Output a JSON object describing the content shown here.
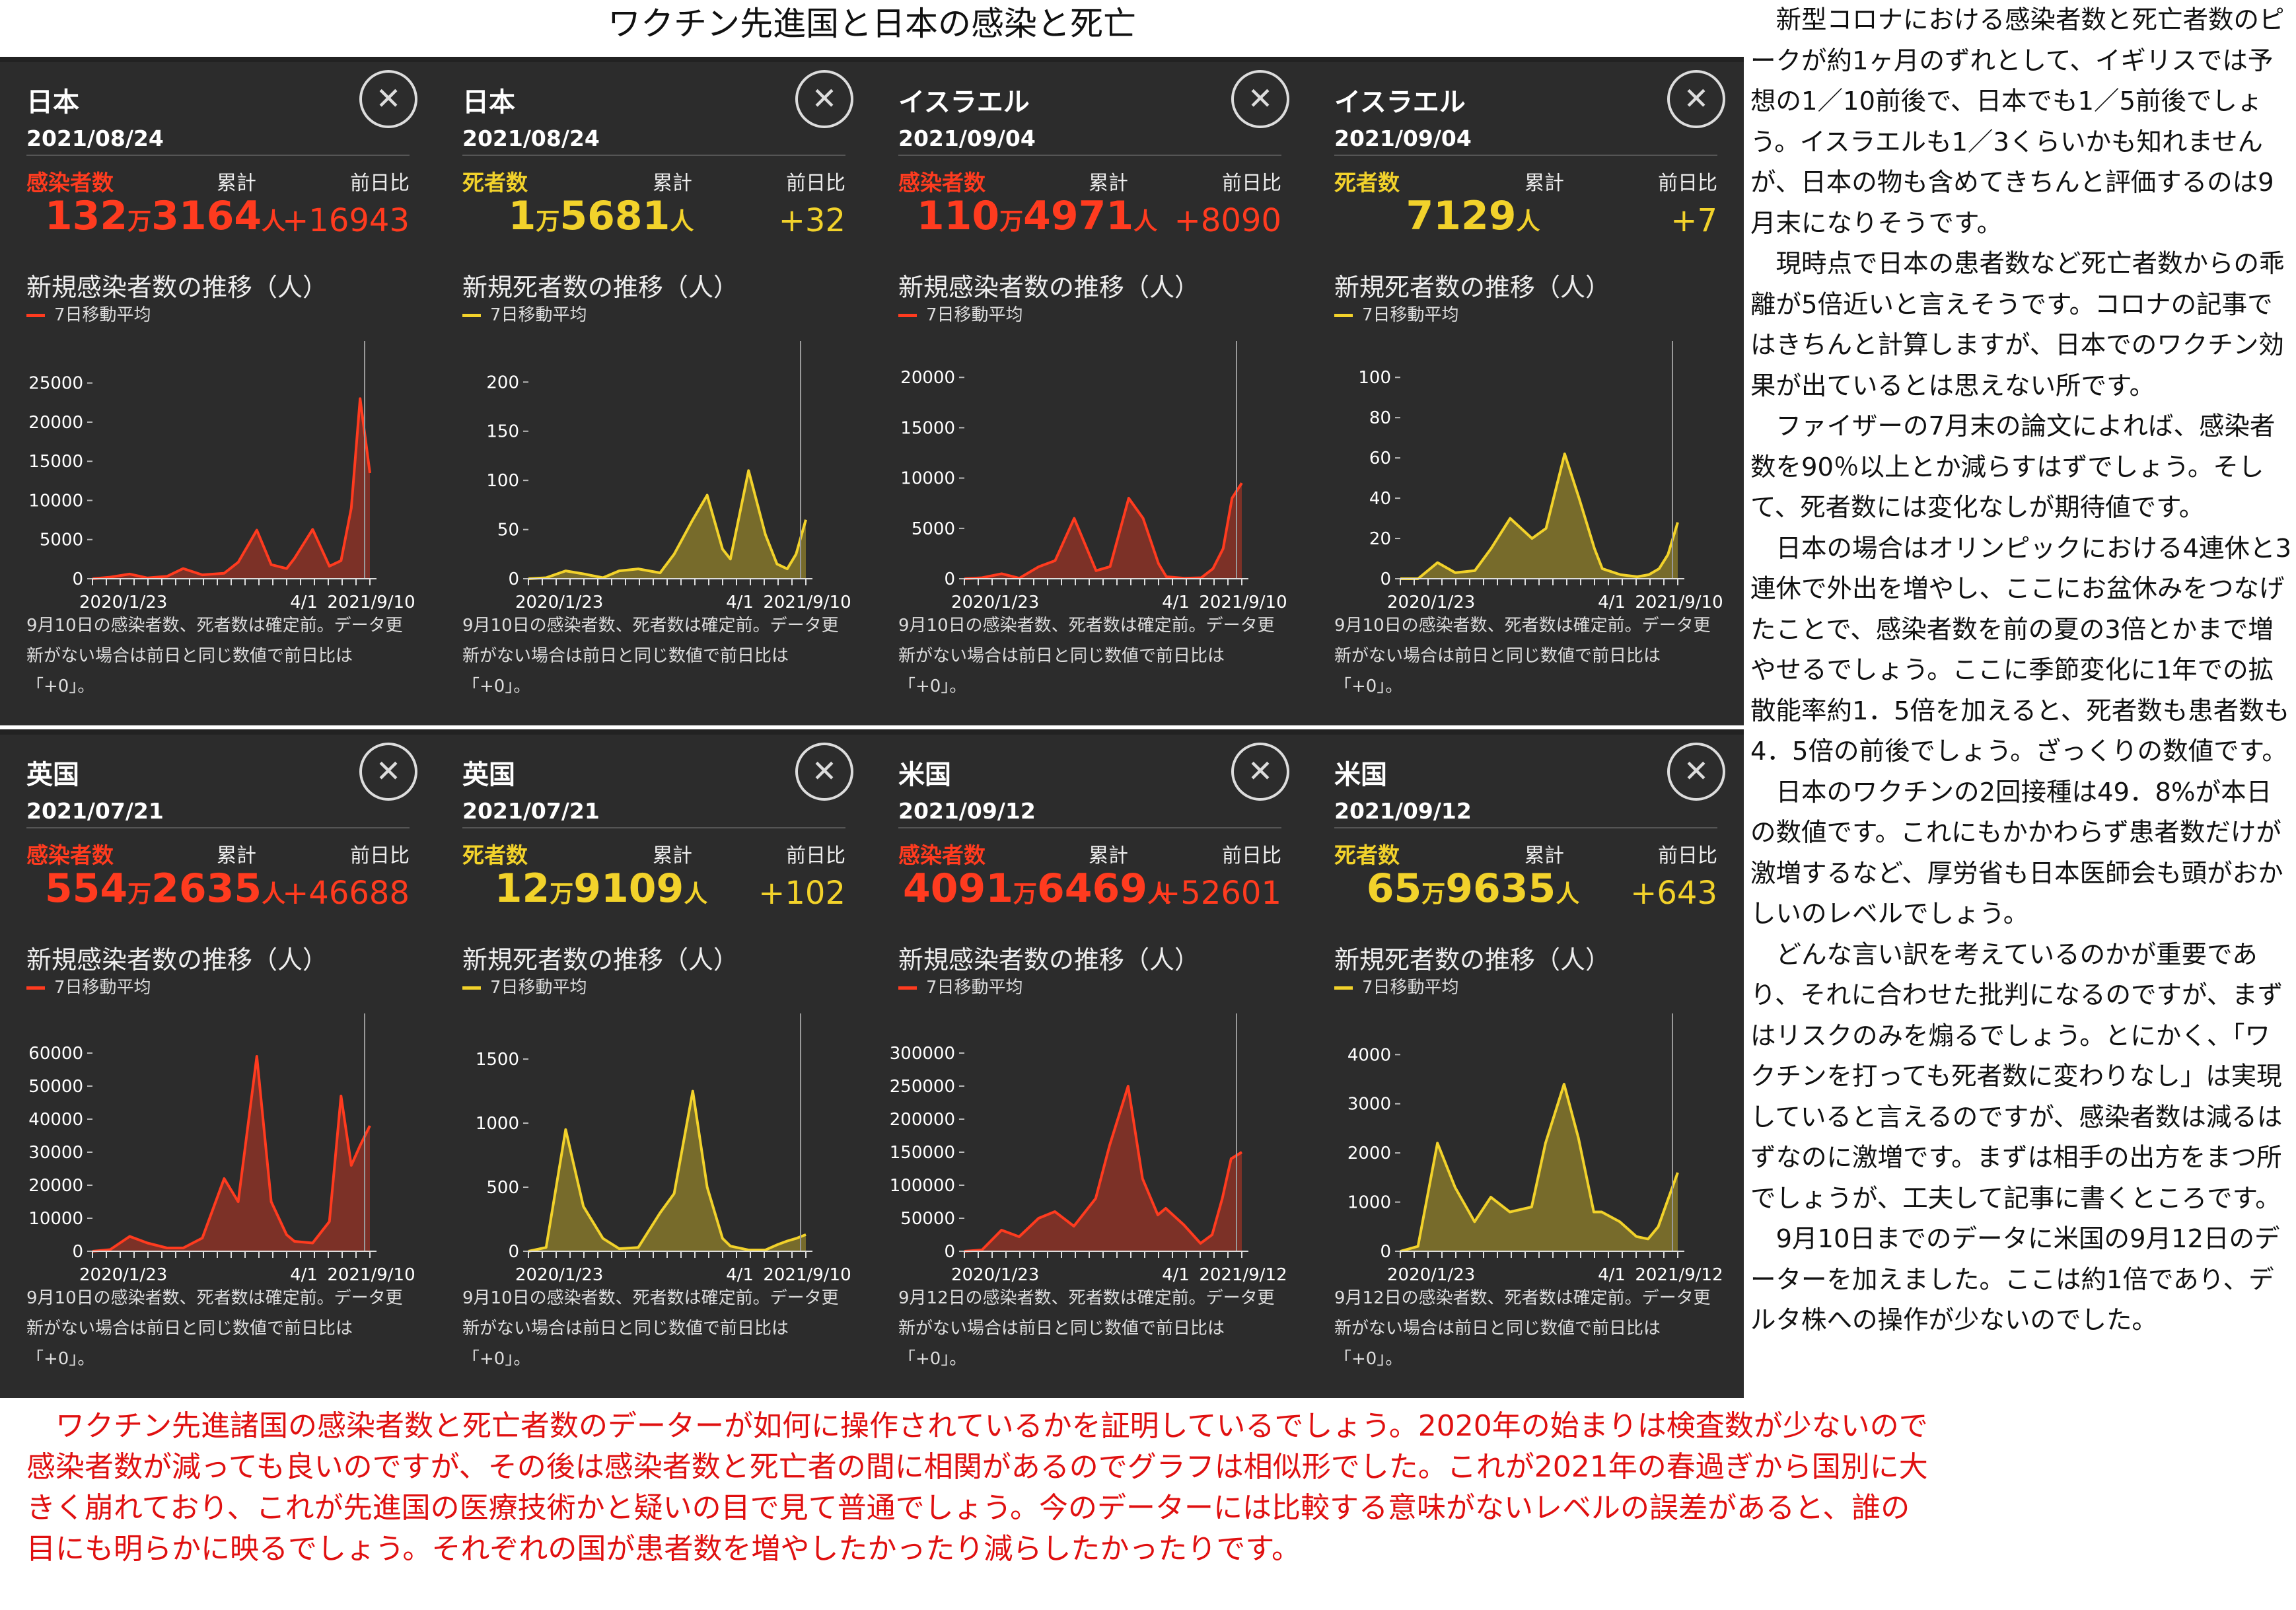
{
  "page_title": "ワクチン先進国と日本の感染と死亡",
  "colors": {
    "infection": "#ff3b1f",
    "death": "#f2d22b",
    "card_bg": "#2c2c2c"
  },
  "icons": {
    "close": "close-icon"
  },
  "common": {
    "cumulative_label": "累計",
    "diff_label": "前日比",
    "legend_label": "7日移動平均",
    "unit_man": "万",
    "unit_person": "人"
  },
  "cards": [
    {
      "country": "日本",
      "date": "2021/08/24",
      "metric": "感染者数",
      "kind": "infection",
      "total_man": "132",
      "total_rest": "3164",
      "diff": "+16943",
      "chart_title": "新規感染者数の推移（人）",
      "note": "9月10日の感染者数、死者数は確定前。データ更新がない場合は前日と同じ数値で前日比は「+0」。"
    },
    {
      "country": "日本",
      "date": "2021/08/24",
      "metric": "死者数",
      "kind": "death",
      "total_man": "1",
      "total_rest": "5681",
      "diff": "+32",
      "chart_title": "新規死者数の推移（人）",
      "note": "9月10日の感染者数、死者数は確定前。データ更新がない場合は前日と同じ数値で前日比は「+0」。"
    },
    {
      "country": "イスラエル",
      "date": "2021/09/04",
      "metric": "感染者数",
      "kind": "infection",
      "total_man": "110",
      "total_rest": "4971",
      "diff": "+8090",
      "chart_title": "新規感染者数の推移（人）",
      "note": "9月10日の感染者数、死者数は確定前。データ更新がない場合は前日と同じ数値で前日比は「+0」。"
    },
    {
      "country": "イスラエル",
      "date": "2021/09/04",
      "metric": "死者数",
      "kind": "death",
      "total_man": "",
      "total_rest": "7129",
      "diff": "+7",
      "chart_title": "新規死者数の推移（人）",
      "note": "9月10日の感染者数、死者数は確定前。データ更新がない場合は前日と同じ数値で前日比は「+0」。"
    },
    {
      "country": "英国",
      "date": "2021/07/21",
      "metric": "感染者数",
      "kind": "infection",
      "total_man": "554",
      "total_rest": "2635",
      "diff": "+46688",
      "chart_title": "新規感染者数の推移（人）",
      "note": "9月10日の感染者数、死者数は確定前。データ更新がない場合は前日と同じ数値で前日比は「+0」。"
    },
    {
      "country": "英国",
      "date": "2021/07/21",
      "metric": "死者数",
      "kind": "death",
      "total_man": "12",
      "total_rest": "9109",
      "diff": "+102",
      "chart_title": "新規死者数の推移（人）",
      "note": "9月10日の感染者数、死者数は確定前。データ更新がない場合は前日と同じ数値で前日比は「+0」。"
    },
    {
      "country": "米国",
      "date": "2021/09/12",
      "metric": "感染者数",
      "kind": "infection",
      "total_man": "4091",
      "total_rest": "6469",
      "diff": "+52601",
      "chart_title": "新規感染者数の推移（人）",
      "note": "9月12日の感染者数、死者数は確定前。データ更新がない場合は前日と同じ数値で前日比は「+0」。"
    },
    {
      "country": "米国",
      "date": "2021/09/12",
      "metric": "死者数",
      "kind": "death",
      "total_man": "65",
      "total_rest": "9635",
      "diff": "+643",
      "chart_title": "新規死者数の推移（人）",
      "note": "9月12日の感染者数、死者数は確定前。データ更新がない場合は前日と同じ数値で前日比は「+0」。"
    }
  ],
  "side_text": [
    "新型コロナにおける感染者数と死亡者数のピークが約1ヶ月のずれとして、イギリスでは予想の1／10前後で、日本でも1／5前後でしょう。イスラエルも1／3くらいかも知れませんが、日本の物も含めてきちんと評価するのは9月末になりそうです。",
    "現時点で日本の患者数など死亡者数からの乖離が5倍近いと言えそうです。コロナの記事ではきちんと計算しますが、日本でのワクチン効果が出ているとは思えない所です。",
    "ファイザーの7月末の論文によれば、感染者数を90％以上とか減らすはずでしょう。そして、死者数には変化なしが期待値です。",
    "日本の場合はオリンピックにおける4連休と3連休で外出を増やし、ここにお盆休みをつなげたことで、感染者数を前の夏の3倍とかまで増やせるでしょう。ここに季節変化に1年での拡散能率約1．5倍を加えると、死者数も患者数も4．5倍の前後でしょう。ざっくりの数値です。",
    "日本のワクチンの2回接種は49．8%が本日の数値です。これにもかかわらず患者数だけが激増するなど、厚労省も日本医師会も頭がおかしいのレベルでしょう。",
    "どんな言い訳を考えているのかが重要であり、それに合わせた批判になるのですが、まずはリスクのみを煽るでしょう。とにかく、「ワクチンを打っても死者数に変わりなし」は実現していると言えるのですが、感染者数は減るはずなのに激増です。まずは相手の出方をまつ所でしょうが、工夫して記事に書くところです。",
    "9月10日までのデータに米国の9月12日のデーターを加えました。ここは約1倍であり、デルタ株への操作が少ないのでした。"
  ],
  "bottom_text": "ワクチン先進諸国の感染者数と死亡者数のデーターが如何に操作されているかを証明しているでしょう。2020年の始まりは検査数が少ないので感染者数が減っても良いのですが、その後は感染者数と死亡者の間に相関があるのでグラフは相似形でした。これが2021年の春過ぎから国別に大きく崩れており、これが先進国の医療技術かと疑いの目で見て普通でしょう。今のデーターには比較する意味がないレベルの誤差があると、誰の目にも明らかに映るでしょう。それぞれの国が患者数を増やしたかったり減らしたかったりです。",
  "chart_data": [
    {
      "type": "area",
      "title": "新規感染者数の推移（人）",
      "series_name": "7日移動平均",
      "x_ticks": [
        "2020/1/23",
        "4/1",
        "2021/9/10"
      ],
      "y_ticks": [
        0,
        5000,
        10000,
        15000,
        20000,
        25000
      ],
      "ylim": [
        0,
        27000
      ],
      "x": [
        "2020/1/23",
        "2020/3/1",
        "2020/4/12",
        "2020/5/20",
        "2020/7/1",
        "2020/8/5",
        "2020/9/15",
        "2020/11/1",
        "2020/12/1",
        "2021/1/10",
        "2021/2/10",
        "2021/3/15",
        "2021/4/1",
        "2021/5/10",
        "2021/6/15",
        "2021/7/10",
        "2021/8/1",
        "2021/8/20",
        "2021/9/10"
      ],
      "y": [
        0,
        200,
        600,
        100,
        300,
        1300,
        500,
        700,
        2100,
        6200,
        1800,
        1300,
        2600,
        6300,
        1600,
        2300,
        9000,
        23000,
        13500
      ]
    },
    {
      "type": "area",
      "title": "新規死者数の推移（人）",
      "series_name": "7日移動平均",
      "x_ticks": [
        "2020/1/23",
        "4/1",
        "2021/9/10"
      ],
      "y_ticks": [
        0,
        50,
        100,
        150,
        200
      ],
      "ylim": [
        0,
        215
      ],
      "x": [
        "2020/1/23",
        "2020/3/1",
        "2020/4/12",
        "2020/5/20",
        "2020/7/1",
        "2020/8/5",
        "2020/9/15",
        "2020/11/1",
        "2020/12/1",
        "2021/1/10",
        "2021/2/10",
        "2021/3/15",
        "2021/4/1",
        "2021/5/10",
        "2021/6/15",
        "2021/7/10",
        "2021/8/1",
        "2021/8/20",
        "2021/9/10"
      ],
      "y": [
        0,
        1,
        8,
        5,
        1,
        8,
        10,
        6,
        25,
        60,
        85,
        30,
        20,
        110,
        45,
        15,
        10,
        25,
        60
      ]
    },
    {
      "type": "area",
      "title": "新規感染者数の推移（人）",
      "series_name": "7日移動平均",
      "x_ticks": [
        "2020/1/23",
        "4/1",
        "2021/9/10"
      ],
      "y_ticks": [
        0,
        5000,
        10000,
        15000,
        20000
      ],
      "ylim": [
        0,
        21000
      ],
      "x": [
        "2020/1/23",
        "2020/3/1",
        "2020/4/12",
        "2020/5/20",
        "2020/7/1",
        "2020/8/5",
        "2020/9/15",
        "2020/11/1",
        "2020/12/1",
        "2021/1/10",
        "2021/2/10",
        "2021/3/15",
        "2021/4/1",
        "2021/5/10",
        "2021/6/15",
        "2021/7/10",
        "2021/8/1",
        "2021/8/20",
        "2021/9/10"
      ],
      "y": [
        0,
        100,
        500,
        50,
        1200,
        1800,
        6000,
        800,
        1200,
        8000,
        6000,
        1500,
        200,
        50,
        100,
        1000,
        3000,
        8000,
        9500
      ]
    },
    {
      "type": "area",
      "title": "新規死者数の推移（人）",
      "series_name": "7日移動平均",
      "x_ticks": [
        "2020/1/23",
        "4/1",
        "2021/9/10"
      ],
      "y_ticks": [
        0,
        20,
        40,
        60,
        80,
        100
      ],
      "ylim": [
        0,
        105
      ],
      "x": [
        "2020/1/23",
        "2020/3/1",
        "2020/4/12",
        "2020/5/20",
        "2020/7/1",
        "2020/8/5",
        "2020/9/15",
        "2020/11/1",
        "2020/12/1",
        "2021/1/10",
        "2021/2/10",
        "2021/3/15",
        "2021/4/1",
        "2021/5/10",
        "2021/6/15",
        "2021/7/10",
        "2021/8/1",
        "2021/8/20",
        "2021/9/10"
      ],
      "y": [
        0,
        0,
        8,
        3,
        4,
        15,
        30,
        20,
        25,
        62,
        40,
        15,
        5,
        2,
        1,
        2,
        5,
        12,
        28
      ]
    },
    {
      "type": "area",
      "title": "新規感染者数の推移（人）",
      "series_name": "7日移動平均",
      "x_ticks": [
        "2020/1/23",
        "4/1",
        "2021/9/10"
      ],
      "y_ticks": [
        0,
        10000,
        20000,
        30000,
        40000,
        50000,
        60000
      ],
      "ylim": [
        0,
        64000
      ],
      "x": [
        "2020/1/23",
        "2020/3/1",
        "2020/4/12",
        "2020/5/20",
        "2020/7/1",
        "2020/8/5",
        "2020/9/15",
        "2020/11/1",
        "2020/12/1",
        "2021/1/10",
        "2021/2/10",
        "2021/3/15",
        "2021/4/1",
        "2021/5/10",
        "2021/6/15",
        "2021/7/10",
        "2021/8/1",
        "2021/8/20",
        "2021/9/10"
      ],
      "y": [
        0,
        500,
        4500,
        2500,
        1000,
        1000,
        4000,
        22000,
        15000,
        59000,
        15000,
        5000,
        3000,
        2500,
        9000,
        47000,
        26000,
        32000,
        38000
      ]
    },
    {
      "type": "area",
      "title": "新規死者数の推移（人）",
      "series_name": "7日移動平均",
      "x_ticks": [
        "2020/1/23",
        "4/1",
        "2021/9/10"
      ],
      "y_ticks": [
        0,
        500,
        1000,
        1500
      ],
      "ylim": [
        0,
        1650
      ],
      "x": [
        "2020/1/23",
        "2020/3/1",
        "2020/4/12",
        "2020/5/20",
        "2020/7/1",
        "2020/8/5",
        "2020/9/15",
        "2020/11/1",
        "2020/12/1",
        "2021/1/10",
        "2021/2/10",
        "2021/3/15",
        "2021/4/1",
        "2021/5/10",
        "2021/6/15",
        "2021/7/10",
        "2021/8/1",
        "2021/8/20",
        "2021/9/10"
      ],
      "y": [
        0,
        30,
        950,
        350,
        100,
        20,
        30,
        300,
        450,
        1250,
        500,
        100,
        40,
        10,
        10,
        50,
        80,
        100,
        130
      ]
    },
    {
      "type": "area",
      "title": "新規感染者数の推移（人）",
      "series_name": "7日移動平均",
      "x_ticks": [
        "2020/1/23",
        "4/1",
        "2021/9/12"
      ],
      "y_ticks": [
        0,
        50000,
        100000,
        150000,
        200000,
        250000,
        300000
      ],
      "ylim": [
        0,
        320000
      ],
      "x": [
        "2020/1/23",
        "2020/3/1",
        "2020/4/12",
        "2020/5/20",
        "2020/7/1",
        "2020/8/5",
        "2020/9/15",
        "2020/11/1",
        "2020/12/1",
        "2021/1/10",
        "2021/2/10",
        "2021/3/15",
        "2021/4/1",
        "2021/5/10",
        "2021/6/15",
        "2021/7/10",
        "2021/8/1",
        "2021/8/20",
        "2021/9/12"
      ],
      "y": [
        0,
        2000,
        32000,
        22000,
        50000,
        60000,
        38000,
        80000,
        160000,
        250000,
        110000,
        55000,
        65000,
        40000,
        12000,
        25000,
        80000,
        140000,
        150000
      ]
    },
    {
      "type": "area",
      "title": "新規死者数の推移（人）",
      "series_name": "7日移動平均",
      "x_ticks": [
        "2020/1/23",
        "4/1",
        "2021/9/12"
      ],
      "y_ticks": [
        0,
        1000,
        2000,
        3000,
        4000
      ],
      "ylim": [
        0,
        4300
      ],
      "x": [
        "2020/1/23",
        "2020/3/1",
        "2020/4/12",
        "2020/5/20",
        "2020/7/1",
        "2020/8/5",
        "2020/9/15",
        "2020/11/1",
        "2020/12/1",
        "2021/1/10",
        "2021/2/10",
        "2021/3/15",
        "2021/4/1",
        "2021/5/10",
        "2021/6/15",
        "2021/7/10",
        "2021/8/1",
        "2021/8/20",
        "2021/9/12"
      ],
      "y": [
        0,
        100,
        2200,
        1300,
        600,
        1100,
        800,
        900,
        2200,
        3400,
        2300,
        800,
        800,
        600,
        300,
        250,
        500,
        1000,
        1600
      ]
    }
  ]
}
